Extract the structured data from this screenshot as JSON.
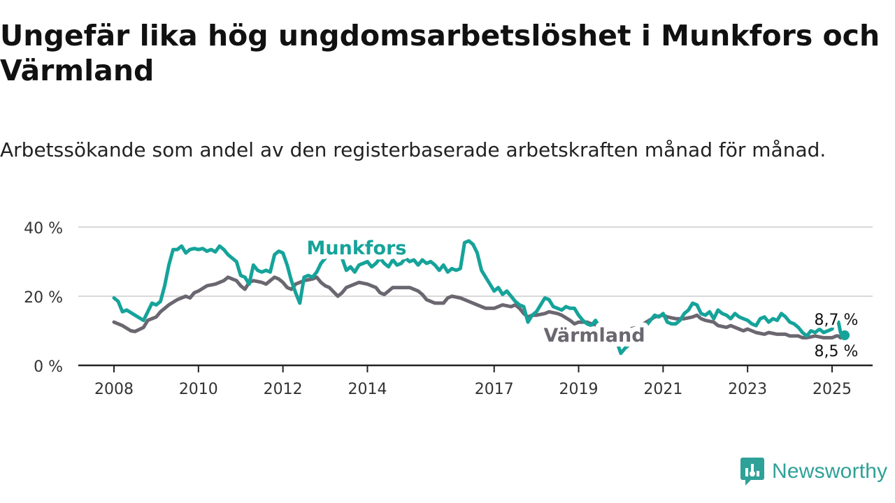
{
  "title": "Ungefär lika hög ungdomsarbetslöshet i Munkfors och Värmland",
  "subtitle": "Arbetssökande som andel av den registerbaserade arbetskraften månad för månad.",
  "brand": {
    "name": "Newsworthy",
    "icon": "newsworthy-logo-icon",
    "color": "#2fa198"
  },
  "chart_data": {
    "type": "line",
    "xlim": [
      2008.0,
      2025.3
    ],
    "ylim": [
      0,
      40
    ],
    "ytick_labels": [
      "0 %",
      "20 %",
      "40 %"
    ],
    "ytick_values": [
      0,
      20,
      40
    ],
    "xtick_values": [
      2008,
      2010,
      2012,
      2014,
      2017,
      2019,
      2021,
      2023,
      2025
    ],
    "xtick_labels": [
      "2008",
      "2010",
      "2012",
      "2014",
      "2017",
      "2019",
      "2021",
      "2023",
      "2025"
    ],
    "grid": "horizontal",
    "end_labels": {
      "munkfors": "8,7 %",
      "varmland": "8,5 %"
    },
    "series": [
      {
        "name": "Munkfors",
        "color": "#15a39a",
        "points": [
          [
            2008.0,
            19.5
          ],
          [
            2008.1,
            18.5
          ],
          [
            2008.2,
            15.5
          ],
          [
            2008.3,
            16.0
          ],
          [
            2008.5,
            14.5
          ],
          [
            2008.7,
            13.0
          ],
          [
            2008.8,
            15.5
          ],
          [
            2008.9,
            18.0
          ],
          [
            2009.0,
            17.5
          ],
          [
            2009.1,
            18.5
          ],
          [
            2009.2,
            23.0
          ],
          [
            2009.3,
            29.0
          ],
          [
            2009.4,
            33.5
          ],
          [
            2009.5,
            33.5
          ],
          [
            2009.6,
            34.5
          ],
          [
            2009.7,
            32.5
          ],
          [
            2009.8,
            33.5
          ],
          [
            2009.9,
            33.8
          ],
          [
            2010.0,
            33.5
          ],
          [
            2010.1,
            33.8
          ],
          [
            2010.2,
            33.0
          ],
          [
            2010.3,
            33.5
          ],
          [
            2010.4,
            32.8
          ],
          [
            2010.5,
            34.5
          ],
          [
            2010.6,
            33.5
          ],
          [
            2010.7,
            32.0
          ],
          [
            2010.8,
            31.0
          ],
          [
            2010.9,
            30.0
          ],
          [
            2011.0,
            26.0
          ],
          [
            2011.1,
            25.5
          ],
          [
            2011.2,
            23.5
          ],
          [
            2011.3,
            29.0
          ],
          [
            2011.4,
            27.5
          ],
          [
            2011.5,
            27.0
          ],
          [
            2011.6,
            27.5
          ],
          [
            2011.7,
            27.0
          ],
          [
            2011.8,
            32.0
          ],
          [
            2011.9,
            33.0
          ],
          [
            2012.0,
            32.5
          ],
          [
            2012.1,
            29.0
          ],
          [
            2012.2,
            24.5
          ],
          [
            2012.3,
            21.0
          ],
          [
            2012.4,
            18.0
          ],
          [
            2012.5,
            25.5
          ],
          [
            2012.6,
            26.0
          ],
          [
            2012.7,
            25.5
          ],
          [
            2012.8,
            27.0
          ],
          [
            2012.9,
            29.5
          ],
          [
            2013.0,
            31.0
          ],
          [
            2013.1,
            32.0
          ],
          [
            2013.2,
            34.0
          ],
          [
            2013.3,
            33.5
          ],
          [
            2013.4,
            31.0
          ],
          [
            2013.5,
            27.5
          ],
          [
            2013.6,
            28.5
          ],
          [
            2013.7,
            27.0
          ],
          [
            2013.8,
            29.0
          ],
          [
            2013.9,
            29.5
          ],
          [
            2014.0,
            30.0
          ],
          [
            2014.1,
            28.5
          ],
          [
            2014.2,
            29.5
          ],
          [
            2014.3,
            31.0
          ],
          [
            2014.4,
            29.5
          ],
          [
            2014.5,
            28.5
          ],
          [
            2014.6,
            30.5
          ],
          [
            2014.7,
            29.0
          ],
          [
            2014.8,
            29.5
          ],
          [
            2014.9,
            31.0
          ],
          [
            2015.0,
            30.0
          ],
          [
            2015.1,
            30.5
          ],
          [
            2015.2,
            29.0
          ],
          [
            2015.3,
            30.5
          ],
          [
            2015.4,
            29.5
          ],
          [
            2015.5,
            30.0
          ],
          [
            2015.6,
            29.0
          ],
          [
            2015.7,
            27.5
          ],
          [
            2015.8,
            29.0
          ],
          [
            2015.9,
            27.0
          ],
          [
            2016.0,
            28.0
          ],
          [
            2016.1,
            27.5
          ],
          [
            2016.2,
            28.0
          ],
          [
            2016.3,
            35.5
          ],
          [
            2016.4,
            36.0
          ],
          [
            2016.5,
            35.0
          ],
          [
            2016.6,
            32.5
          ],
          [
            2016.7,
            27.5
          ],
          [
            2016.8,
            25.5
          ],
          [
            2016.9,
            23.5
          ],
          [
            2017.0,
            21.5
          ],
          [
            2017.1,
            22.5
          ],
          [
            2017.2,
            20.5
          ],
          [
            2017.3,
            21.5
          ],
          [
            2017.4,
            20.0
          ],
          [
            2017.5,
            18.5
          ],
          [
            2017.6,
            17.5
          ],
          [
            2017.7,
            17.0
          ],
          [
            2017.8,
            12.5
          ],
          [
            2017.9,
            14.5
          ],
          [
            2018.0,
            15.5
          ],
          [
            2018.1,
            17.5
          ],
          [
            2018.2,
            19.5
          ],
          [
            2018.3,
            19.0
          ],
          [
            2018.4,
            17.0
          ],
          [
            2018.5,
            16.5
          ],
          [
            2018.6,
            16.0
          ],
          [
            2018.7,
            17.0
          ],
          [
            2018.8,
            16.5
          ],
          [
            2018.9,
            16.5
          ],
          [
            2019.0,
            14.5
          ],
          [
            2019.1,
            13.0
          ],
          [
            2019.2,
            12.0
          ],
          [
            2019.3,
            11.5
          ],
          [
            2019.4,
            13.0
          ],
          [
            2019.5,
            11.0
          ],
          [
            2019.6,
            10.0
          ],
          [
            2019.7,
            9.0
          ],
          [
            2019.8,
            8.0
          ],
          [
            2019.9,
            7.0
          ],
          [
            2020.0,
            3.5
          ],
          [
            2020.1,
            5.0
          ],
          [
            2020.2,
            6.0
          ],
          [
            2020.3,
            7.0
          ],
          [
            2020.4,
            9.0
          ],
          [
            2020.5,
            10.0
          ],
          [
            2020.6,
            11.5
          ],
          [
            2020.7,
            13.0
          ],
          [
            2020.8,
            14.5
          ],
          [
            2020.9,
            14.0
          ],
          [
            2021.0,
            15.0
          ],
          [
            2021.1,
            12.5
          ],
          [
            2021.2,
            12.0
          ],
          [
            2021.3,
            12.0
          ],
          [
            2021.4,
            13.0
          ],
          [
            2021.5,
            15.0
          ],
          [
            2021.6,
            16.0
          ],
          [
            2021.7,
            18.0
          ],
          [
            2021.8,
            17.5
          ],
          [
            2021.9,
            15.0
          ],
          [
            2022.0,
            14.5
          ],
          [
            2022.1,
            15.5
          ],
          [
            2022.2,
            13.5
          ],
          [
            2022.3,
            16.0
          ],
          [
            2022.4,
            15.0
          ],
          [
            2022.5,
            14.5
          ],
          [
            2022.6,
            13.5
          ],
          [
            2022.7,
            15.0
          ],
          [
            2022.8,
            14.0
          ],
          [
            2022.9,
            13.5
          ],
          [
            2023.0,
            13.0
          ],
          [
            2023.1,
            12.0
          ],
          [
            2023.2,
            11.5
          ],
          [
            2023.3,
            13.5
          ],
          [
            2023.4,
            14.0
          ],
          [
            2023.5,
            12.5
          ],
          [
            2023.6,
            13.5
          ],
          [
            2023.7,
            13.0
          ],
          [
            2023.8,
            15.0
          ],
          [
            2023.9,
            14.0
          ],
          [
            2024.0,
            12.5
          ],
          [
            2024.1,
            12.0
          ],
          [
            2024.2,
            11.0
          ],
          [
            2024.3,
            9.5
          ],
          [
            2024.4,
            8.5
          ],
          [
            2024.5,
            10.0
          ],
          [
            2024.6,
            9.5
          ],
          [
            2024.7,
            10.5
          ],
          [
            2024.8,
            9.5
          ],
          [
            2024.9,
            10.0
          ],
          [
            2025.0,
            10.5
          ],
          [
            2025.05,
            13.0
          ],
          [
            2025.1,
            12.5
          ],
          [
            2025.15,
            12.5
          ],
          [
            2025.2,
            9.5
          ],
          [
            2025.25,
            8.5
          ],
          [
            2025.3,
            8.7
          ]
        ]
      },
      {
        "name": "Värmland",
        "color": "#6b6770",
        "points": [
          [
            2008.0,
            12.5
          ],
          [
            2008.2,
            11.5
          ],
          [
            2008.4,
            10.0
          ],
          [
            2008.5,
            9.8
          ],
          [
            2008.7,
            11.0
          ],
          [
            2008.8,
            13.0
          ],
          [
            2009.0,
            14.0
          ],
          [
            2009.1,
            15.5
          ],
          [
            2009.3,
            17.5
          ],
          [
            2009.5,
            19.0
          ],
          [
            2009.7,
            20.0
          ],
          [
            2009.8,
            19.5
          ],
          [
            2009.9,
            21.0
          ],
          [
            2010.0,
            21.5
          ],
          [
            2010.2,
            23.0
          ],
          [
            2010.4,
            23.5
          ],
          [
            2010.6,
            24.5
          ],
          [
            2010.7,
            25.5
          ],
          [
            2010.8,
            25.0
          ],
          [
            2010.9,
            24.5
          ],
          [
            2011.0,
            23.0
          ],
          [
            2011.1,
            22.0
          ],
          [
            2011.2,
            24.0
          ],
          [
            2011.3,
            24.5
          ],
          [
            2011.5,
            24.0
          ],
          [
            2011.6,
            23.5
          ],
          [
            2011.7,
            24.5
          ],
          [
            2011.8,
            25.5
          ],
          [
            2011.9,
            25.0
          ],
          [
            2012.0,
            24.0
          ],
          [
            2012.1,
            22.5
          ],
          [
            2012.2,
            22.0
          ],
          [
            2012.3,
            23.5
          ],
          [
            2012.5,
            24.5
          ],
          [
            2012.7,
            25.0
          ],
          [
            2012.8,
            25.5
          ],
          [
            2012.9,
            24.0
          ],
          [
            2013.0,
            23.0
          ],
          [
            2013.1,
            22.5
          ],
          [
            2013.3,
            20.0
          ],
          [
            2013.4,
            21.0
          ],
          [
            2013.5,
            22.5
          ],
          [
            2013.7,
            23.5
          ],
          [
            2013.8,
            24.0
          ],
          [
            2014.0,
            23.5
          ],
          [
            2014.2,
            22.5
          ],
          [
            2014.3,
            21.0
          ],
          [
            2014.4,
            20.5
          ],
          [
            2014.5,
            21.5
          ],
          [
            2014.6,
            22.5
          ],
          [
            2014.8,
            22.5
          ],
          [
            2015.0,
            22.5
          ],
          [
            2015.2,
            21.5
          ],
          [
            2015.3,
            20.5
          ],
          [
            2015.4,
            19.0
          ],
          [
            2015.5,
            18.5
          ],
          [
            2015.6,
            18.0
          ],
          [
            2015.8,
            18.0
          ],
          [
            2015.9,
            19.5
          ],
          [
            2016.0,
            20.0
          ],
          [
            2016.2,
            19.5
          ],
          [
            2016.3,
            19.0
          ],
          [
            2016.5,
            18.0
          ],
          [
            2016.7,
            17.0
          ],
          [
            2016.8,
            16.5
          ],
          [
            2017.0,
            16.5
          ],
          [
            2017.2,
            17.5
          ],
          [
            2017.4,
            17.0
          ],
          [
            2017.5,
            17.5
          ],
          [
            2017.6,
            16.5
          ],
          [
            2017.7,
            15.0
          ],
          [
            2017.8,
            14.0
          ],
          [
            2017.9,
            14.5
          ],
          [
            2018.0,
            14.5
          ],
          [
            2018.2,
            15.0
          ],
          [
            2018.3,
            15.5
          ],
          [
            2018.5,
            15.0
          ],
          [
            2018.6,
            14.5
          ],
          [
            2018.8,
            13.0
          ],
          [
            2018.9,
            12.0
          ],
          [
            2019.0,
            12.5
          ],
          [
            2019.2,
            12.5
          ],
          [
            2019.3,
            12.0
          ],
          [
            2019.5,
            11.5
          ],
          [
            2019.6,
            10.5
          ],
          [
            2019.8,
            10.0
          ],
          [
            2020.0,
            10.0
          ],
          [
            2020.2,
            10.5
          ],
          [
            2020.4,
            11.0
          ],
          [
            2020.6,
            12.5
          ],
          [
            2020.8,
            14.0
          ],
          [
            2021.0,
            14.5
          ],
          [
            2021.1,
            14.0
          ],
          [
            2021.3,
            13.5
          ],
          [
            2021.5,
            13.5
          ],
          [
            2021.7,
            14.0
          ],
          [
            2021.8,
            14.5
          ],
          [
            2021.9,
            13.5
          ],
          [
            2022.0,
            13.0
          ],
          [
            2022.2,
            12.5
          ],
          [
            2022.3,
            11.5
          ],
          [
            2022.5,
            11.0
          ],
          [
            2022.6,
            11.5
          ],
          [
            2022.8,
            10.5
          ],
          [
            2022.9,
            10.0
          ],
          [
            2023.0,
            10.5
          ],
          [
            2023.2,
            9.5
          ],
          [
            2023.4,
            9.0
          ],
          [
            2023.5,
            9.5
          ],
          [
            2023.7,
            9.0
          ],
          [
            2023.9,
            9.0
          ],
          [
            2024.0,
            8.5
          ],
          [
            2024.2,
            8.5
          ],
          [
            2024.3,
            8.0
          ],
          [
            2024.4,
            8.0
          ],
          [
            2024.6,
            8.5
          ],
          [
            2024.8,
            8.0
          ],
          [
            2025.0,
            8.0
          ],
          [
            2025.1,
            8.5
          ],
          [
            2025.15,
            8.5
          ],
          [
            2025.2,
            8.0
          ],
          [
            2025.25,
            8.5
          ],
          [
            2025.3,
            8.5
          ]
        ]
      }
    ]
  }
}
